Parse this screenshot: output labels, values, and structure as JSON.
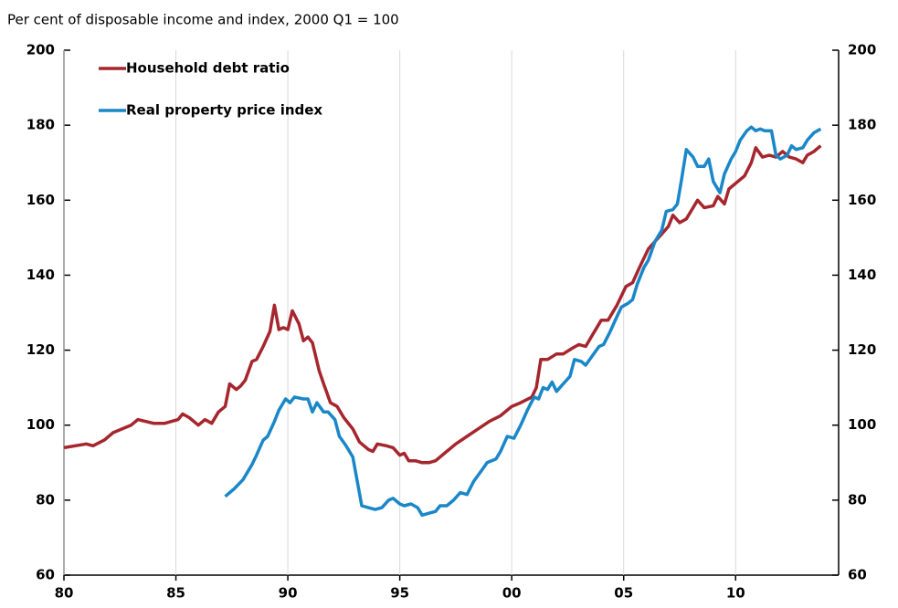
{
  "chart_data": {
    "type": "line",
    "subtitle": "Per cent of disposable income and index, 2000 Q1 = 100",
    "xlim": [
      1980,
      2014.6
    ],
    "xticks": [
      {
        "value": 1980,
        "label": "80"
      },
      {
        "value": 1985,
        "label": "85"
      },
      {
        "value": 1990,
        "label": "90"
      },
      {
        "value": 1995,
        "label": "95"
      },
      {
        "value": 2000,
        "label": "00"
      },
      {
        "value": 2005,
        "label": "05"
      },
      {
        "value": 2010,
        "label": "10"
      }
    ],
    "ylim": [
      60,
      200
    ],
    "yticks": [
      60,
      80,
      100,
      120,
      140,
      160,
      180,
      200
    ],
    "y2lim": [
      60,
      200
    ],
    "y2ticks": [
      60,
      80,
      100,
      120,
      140,
      160,
      180,
      200
    ],
    "xgrid": true,
    "legend": "top-left",
    "series": [
      {
        "name": "Household debt ratio",
        "color": "#a6262e",
        "x": [
          1980,
          1981,
          1981.3,
          1981.8,
          1982.2,
          1982.6,
          1983,
          1983.3,
          1984,
          1984.5,
          1985.1,
          1985.3,
          1985.6,
          1986,
          1986.3,
          1986.6,
          1986.9,
          1987.2,
          1987.4,
          1987.7,
          1987.9,
          1988.1,
          1988.4,
          1988.6,
          1988.9,
          1989.2,
          1989.4,
          1989.6,
          1989.8,
          1990.0,
          1990.2,
          1990.5,
          1990.7,
          1990.9,
          1991.1,
          1991.4,
          1991.6,
          1991.9,
          1992.2,
          1992.5,
          1992.9,
          1993.2,
          1993.6,
          1993.8,
          1994.0,
          1994.4,
          1994.7,
          1995.0,
          1995.2,
          1995.4,
          1995.7,
          1996,
          1996.3,
          1996.6,
          1997,
          1997.5,
          1998,
          1998.5,
          1999,
          1999.5,
          2000,
          2000.4,
          2000.9,
          2001.1,
          2001.3,
          2001.6,
          2002.0,
          2002.3,
          2002.7,
          2003.0,
          2003.3,
          2003.6,
          2004.0,
          2004.3,
          2004.7,
          2005.1,
          2005.4,
          2005.7,
          2006.1,
          2006.4,
          2006.7,
          2007.0,
          2007.2,
          2007.5,
          2007.8,
          2008.0,
          2008.3,
          2008.6,
          2009.0,
          2009.2,
          2009.5,
          2009.7,
          2010.1,
          2010.4,
          2010.7,
          2010.9,
          2011.2,
          2011.5,
          2011.8,
          2012.1,
          2012.4,
          2012.7,
          2013.0,
          2013.2,
          2013.5,
          2013.8
        ],
        "values": [
          94,
          95,
          94.5,
          96,
          98,
          99,
          100,
          101.5,
          100.5,
          100.5,
          101.5,
          103,
          102,
          100,
          101.5,
          100.5,
          103.5,
          105,
          111,
          109.5,
          110.5,
          112,
          117,
          117.5,
          121,
          125,
          132,
          125.5,
          126,
          125.5,
          130.5,
          127,
          122.5,
          123.5,
          122,
          114.5,
          111,
          106,
          105,
          102,
          99,
          95.5,
          93.5,
          93,
          95,
          94.5,
          94,
          92,
          92.5,
          90.5,
          90.5,
          90,
          90,
          90.5,
          92.5,
          95,
          97,
          99,
          101,
          102.5,
          105,
          106,
          107.5,
          110,
          117.5,
          117.5,
          119,
          119,
          120.5,
          121.5,
          121,
          124,
          128,
          128,
          132,
          137,
          138,
          142,
          147,
          149,
          151,
          153,
          156,
          154,
          155,
          157,
          160,
          158,
          158.5,
          161,
          159,
          163,
          165,
          166.5,
          170,
          174,
          171.5,
          172,
          171.5,
          173,
          171.5,
          171,
          170,
          172,
          173,
          174.5
        ]
      },
      {
        "name": "Real property price index",
        "color": "#1a87c8",
        "x": [
          1987.2,
          1987.6,
          1988,
          1988.4,
          1988.6,
          1988.9,
          1989.1,
          1989.4,
          1989.6,
          1989.9,
          1990.1,
          1990.3,
          1990.7,
          1990.9,
          1991.1,
          1991.3,
          1991.6,
          1991.8,
          1992.1,
          1992.3,
          1992.6,
          1992.9,
          1993.1,
          1993.3,
          1993.6,
          1993.9,
          1994.2,
          1994.5,
          1994.7,
          1995.0,
          1995.2,
          1995.5,
          1995.8,
          1996.0,
          1996.3,
          1996.6,
          1996.8,
          1997.1,
          1997.4,
          1997.7,
          1998.0,
          1998.3,
          1998.6,
          1998.9,
          1999.3,
          1999.5,
          1999.8,
          2000.1,
          2000.4,
          2000.7,
          2001.0,
          2001.2,
          2001.4,
          2001.6,
          2001.8,
          2002.0,
          2002.3,
          2002.6,
          2002.8,
          2003.1,
          2003.3,
          2003.6,
          2003.9,
          2004.1,
          2004.4,
          2004.7,
          2004.9,
          2005.2,
          2005.4,
          2005.6,
          2005.9,
          2006.1,
          2006.4,
          2006.7,
          2006.9,
          2007.2,
          2007.4,
          2007.6,
          2007.8,
          2008.1,
          2008.3,
          2008.6,
          2008.8,
          2009.0,
          2009.3,
          2009.5,
          2009.8,
          2010.0,
          2010.2,
          2010.5,
          2010.7,
          2010.9,
          2011.1,
          2011.3,
          2011.6,
          2011.8,
          2012.0,
          2012.3,
          2012.5,
          2012.7,
          2013.0,
          2013.2,
          2013.5,
          2013.8
        ],
        "values": [
          81,
          83,
          85.5,
          89.5,
          92,
          96,
          97,
          101,
          104,
          107,
          106,
          107.5,
          107,
          107,
          103.5,
          106,
          103.5,
          103.5,
          101.5,
          97,
          94.5,
          91.5,
          85,
          78.5,
          78,
          77.5,
          78,
          80,
          80.5,
          79,
          78.5,
          79,
          78,
          76,
          76.5,
          77,
          78.5,
          78.5,
          80,
          82,
          81.5,
          85,
          87.5,
          90,
          91,
          93,
          97,
          96.5,
          100,
          104,
          107.5,
          107,
          110,
          109.5,
          111.5,
          109,
          111,
          113,
          117.5,
          117,
          116,
          118.5,
          121,
          121.5,
          125,
          129,
          131.5,
          132.5,
          133.5,
          137.5,
          142,
          144,
          149,
          152,
          157,
          157.5,
          159,
          166,
          173.5,
          171.5,
          169,
          169,
          171,
          165,
          162,
          167,
          171,
          173,
          176,
          178.5,
          179.5,
          178.5,
          179,
          178.5,
          178.5,
          172,
          171,
          172,
          174.5,
          173.5,
          174,
          176,
          178,
          179
        ]
      }
    ]
  }
}
